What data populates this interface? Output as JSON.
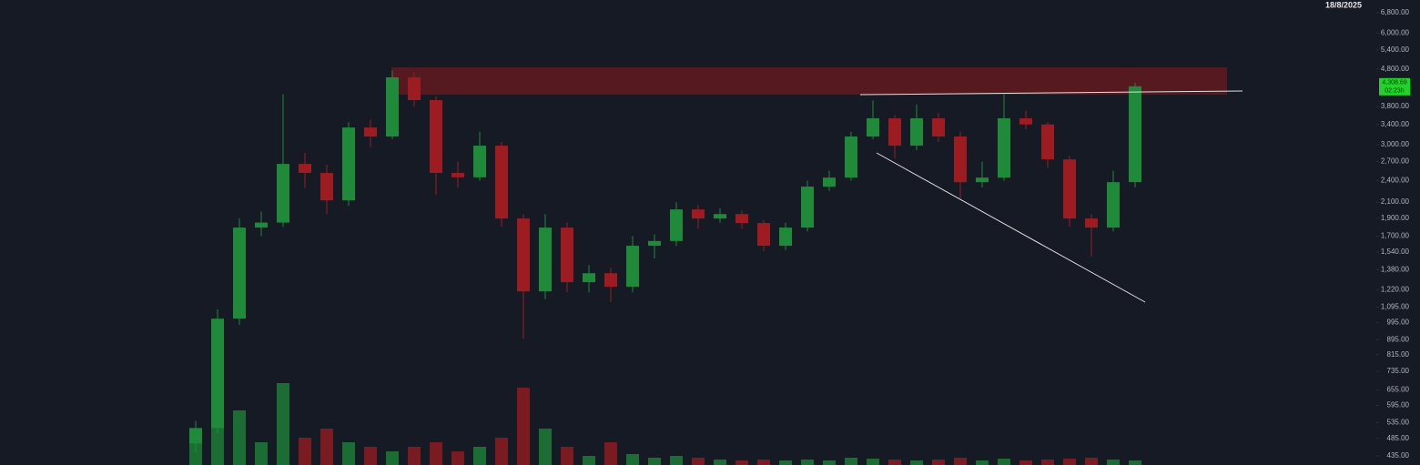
{
  "chart_data": {
    "type": "candlestick",
    "date_label": "18/8/2025",
    "log_scale": true,
    "up_color": "#1f8a3a",
    "down_color": "#9c1c22",
    "ylim": [
      411,
      7360
    ],
    "yticks": [
      {
        "value": 6800,
        "label": "6,800.00"
      },
      {
        "value": 6000,
        "label": "6,000.00"
      },
      {
        "value": 5400,
        "label": "5,400.00"
      },
      {
        "value": 4800,
        "label": "4,800.00"
      },
      {
        "value": 3800,
        "label": "3,800.00"
      },
      {
        "value": 3400,
        "label": "3,400.00"
      },
      {
        "value": 3000,
        "label": "3,000.00"
      },
      {
        "value": 2700,
        "label": "2,700.00"
      },
      {
        "value": 2400,
        "label": "2,400.00"
      },
      {
        "value": 2100,
        "label": "2,100.00"
      },
      {
        "value": 1900,
        "label": "1,900.00"
      },
      {
        "value": 1700,
        "label": "1,700.00"
      },
      {
        "value": 1540,
        "label": "1,540.00"
      },
      {
        "value": 1380,
        "label": "1,380.00"
      },
      {
        "value": 1220,
        "label": "1,220.00"
      },
      {
        "value": 1095,
        "label": "1,095.00"
      },
      {
        "value": 995,
        "label": "995.00"
      },
      {
        "value": 895,
        "label": "895.00"
      },
      {
        "value": 815,
        "label": "815.00"
      },
      {
        "value": 735,
        "label": "735.00"
      },
      {
        "value": 655,
        "label": "655.00"
      },
      {
        "value": 595,
        "label": "595.00"
      },
      {
        "value": 535,
        "label": "535.00"
      },
      {
        "value": 485,
        "label": "485.00"
      },
      {
        "value": 435,
        "label": "435.00"
      }
    ],
    "open": [
      470,
      517,
      1019,
      1793,
      1850,
      2662,
      2517,
      2123,
      3337,
      3155,
      4555,
      3955,
      2517,
      2450,
      2981,
      1897,
      1207,
      1793,
      1278,
      1351,
      1242,
      1602,
      1650,
      2007,
      1897,
      1950,
      1844,
      1602,
      1793,
      2312,
      2445,
      3155,
      3533,
      2981,
      3533,
      3155,
      2377,
      2445,
      3533,
      3400,
      2738,
      1897,
      1793,
      2377
    ],
    "high": [
      540,
      1080,
      1900,
      1980,
      4100,
      2850,
      2650,
      3450,
      3500,
      4750,
      4700,
      4050,
      2700,
      3250,
      3050,
      1950,
      1950,
      1850,
      1420,
      1400,
      1700,
      1720,
      2100,
      2060,
      2020,
      1990,
      1880,
      1850,
      2400,
      2550,
      3250,
      3950,
      3600,
      3850,
      3650,
      3250,
      2700,
      4100,
      3700,
      3450,
      2800,
      1950,
      2550,
      4400
    ],
    "low": [
      445,
      500,
      980,
      1700,
      1800,
      2300,
      1950,
      2050,
      2950,
      3100,
      3800,
      2200,
      2300,
      2400,
      1800,
      900,
      1150,
      1200,
      1200,
      1130,
      1200,
      1480,
      1600,
      1780,
      1850,
      1780,
      1550,
      1560,
      1750,
      2250,
      2400,
      3100,
      2750,
      2900,
      3050,
      2150,
      2300,
      2400,
      3300,
      2600,
      1800,
      1500,
      1750,
      2300
    ],
    "close": [
      517,
      1019,
      1793,
      1850,
      2662,
      2517,
      2123,
      3337,
      3155,
      4555,
      3955,
      2517,
      2450,
      2981,
      1897,
      1207,
      1793,
      1278,
      1351,
      1242,
      1602,
      1650,
      2007,
      1897,
      1950,
      1844,
      1602,
      1793,
      2312,
      2445,
      3155,
      3533,
      2981,
      3533,
      3155,
      2377,
      2445,
      3533,
      3400,
      2738,
      1897,
      1793,
      2377,
      4308.69
    ],
    "volume": [
      30,
      45,
      60,
      25,
      90,
      30,
      40,
      25,
      20,
      15,
      20,
      25,
      15,
      20,
      30,
      85,
      40,
      20,
      10,
      25,
      12,
      8,
      10,
      8,
      6,
      5,
      6,
      5,
      6,
      5,
      8,
      7,
      6,
      5,
      6,
      8,
      5,
      7,
      5,
      6,
      7,
      8,
      6,
      5
    ],
    "vlim": [
      0,
      100
    ],
    "zone": {
      "range": [
        4090,
        4845
      ],
      "color": "#5e1a20"
    },
    "last_price": {
      "value": 4308.69,
      "label": "4,308.69"
    },
    "countdown": "02:23h"
  }
}
